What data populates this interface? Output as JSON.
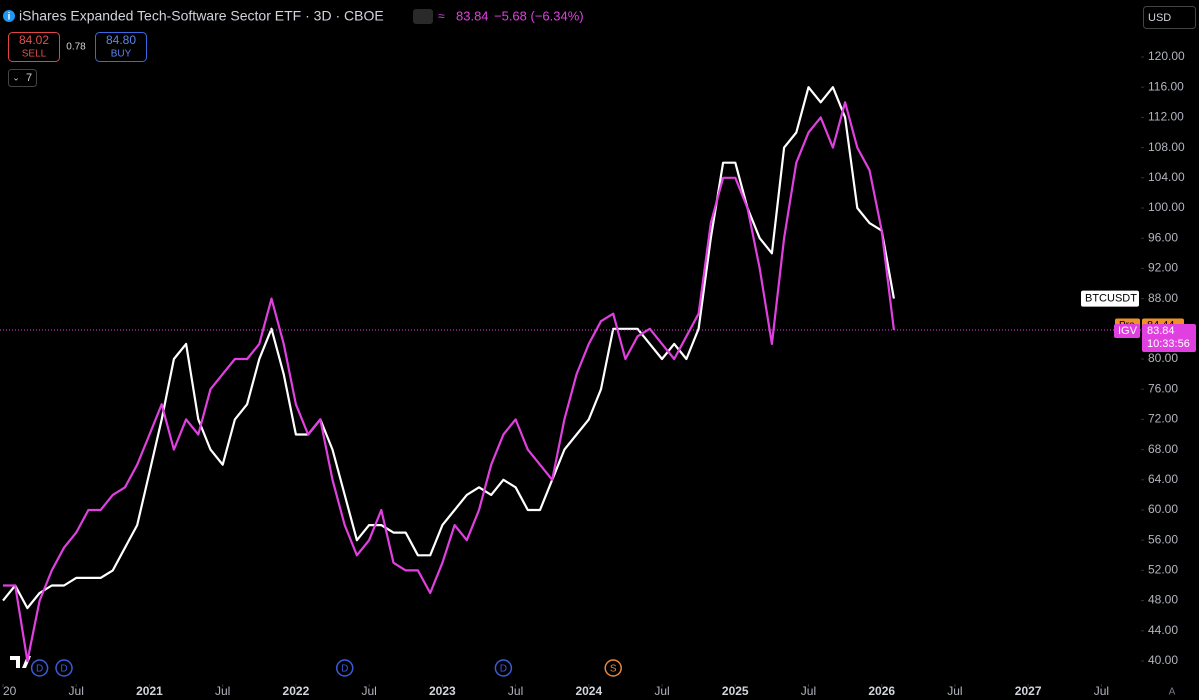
{
  "chart_data": {
    "type": "line",
    "title": "iShares Expanded Tech-Software Sector ETF · 3D · CBOE",
    "last_price": "83.84",
    "change": "−5.68 (−6.34%)",
    "sell_price": "84.02",
    "sell_label": "SELL",
    "spread": "0.78",
    "buy_price": "84.80",
    "buy_label": "BUY",
    "indicator_count": "7",
    "currency": "USD",
    "pre_label": "Pre",
    "pre_price": 84.44,
    "countdown": "10:33:56",
    "x": [
      "2020-01",
      "2020-02",
      "2020-03",
      "2020-04",
      "2020-05",
      "2020-06",
      "2020-07",
      "2020-08",
      "2020-09",
      "2020-10",
      "2020-11",
      "2020-12",
      "2021-01",
      "2021-02",
      "2021-03",
      "2021-04",
      "2021-05",
      "2021-06",
      "2021-07",
      "2021-08",
      "2021-09",
      "2021-10",
      "2021-11",
      "2021-12",
      "2022-01",
      "2022-02",
      "2022-03",
      "2022-04",
      "2022-05",
      "2022-06",
      "2022-07",
      "2022-08",
      "2022-09",
      "2022-10",
      "2022-11",
      "2022-12",
      "2023-01",
      "2023-02",
      "2023-03",
      "2023-04",
      "2023-05",
      "2023-06",
      "2023-07",
      "2023-08",
      "2023-09",
      "2023-10",
      "2023-11",
      "2023-12",
      "2024-01",
      "2024-02",
      "2024-03",
      "2024-04",
      "2024-05",
      "2024-06",
      "2024-07",
      "2024-08",
      "2024-09",
      "2024-10",
      "2024-11",
      "2024-12",
      "2025-01",
      "2025-02",
      "2025-03",
      "2025-04",
      "2025-05",
      "2025-06",
      "2025-07",
      "2025-08",
      "2025-09",
      "2025-10",
      "2025-11",
      "2025-12",
      "2026-01",
      "2026-02"
    ],
    "series": [
      {
        "name": "BTCUSDT",
        "color": "#ffffff",
        "values": [
          48,
          50,
          47,
          49,
          50,
          50,
          51,
          51,
          51,
          52,
          55,
          58,
          65,
          72,
          80,
          82,
          72,
          68,
          66,
          72,
          74,
          80,
          84,
          78,
          70,
          70,
          72,
          68,
          62,
          56,
          58,
          58,
          57,
          57,
          54,
          54,
          58,
          60,
          62,
          63,
          62,
          64,
          63,
          60,
          60,
          64,
          68,
          70,
          72,
          76,
          84,
          84,
          84,
          82,
          80,
          82,
          80,
          84,
          96,
          106,
          106,
          100,
          96,
          94,
          108,
          110,
          116,
          114,
          116,
          112,
          100,
          98,
          97,
          88
        ]
      },
      {
        "name": "IGV",
        "color": "#e040e0",
        "values": [
          50,
          50,
          40,
          48,
          52,
          55,
          57,
          60,
          60,
          62,
          63,
          66,
          70,
          74,
          68,
          72,
          70,
          76,
          78,
          80,
          80,
          82,
          88,
          82,
          74,
          70,
          72,
          64,
          58,
          54,
          56,
          60,
          53,
          52,
          52,
          49,
          53,
          58,
          56,
          60,
          66,
          70,
          72,
          68,
          66,
          64,
          72,
          78,
          82,
          85,
          86,
          80,
          83,
          84,
          82,
          80,
          83,
          86,
          98,
          104,
          104,
          100,
          92,
          82,
          96,
          106,
          110,
          112,
          108,
          114,
          108,
          105,
          97,
          83.84
        ]
      }
    ],
    "xlim": [
      "2020-01",
      "2027-10"
    ],
    "xticks": [
      {
        "value": "2020-01",
        "label": "20"
      },
      {
        "value": "2020-07",
        "label": "Jul"
      },
      {
        "value": "2021-01",
        "label": "2021"
      },
      {
        "value": "2021-07",
        "label": "Jul"
      },
      {
        "value": "2022-01",
        "label": "2022"
      },
      {
        "value": "2022-07",
        "label": "Jul"
      },
      {
        "value": "2023-01",
        "label": "2023"
      },
      {
        "value": "2023-07",
        "label": "Jul"
      },
      {
        "value": "2024-01",
        "label": "2024"
      },
      {
        "value": "2024-07",
        "label": "Jul"
      },
      {
        "value": "2025-01",
        "label": "2025"
      },
      {
        "value": "2025-07",
        "label": "Jul"
      },
      {
        "value": "2026-01",
        "label": "2026"
      },
      {
        "value": "2026-07",
        "label": "Jul"
      },
      {
        "value": "2027-01",
        "label": "2027"
      },
      {
        "value": "2027-07",
        "label": "Jul"
      }
    ],
    "ylim": [
      36.95,
      127.55
    ],
    "yticks": [
      {
        "value": 40,
        "label": "40.00"
      },
      {
        "value": 44,
        "label": "44.00"
      },
      {
        "value": 48,
        "label": "48.00"
      },
      {
        "value": 52,
        "label": "52.00"
      },
      {
        "value": 56,
        "label": "56.00"
      },
      {
        "value": 60,
        "label": "60.00"
      },
      {
        "value": 64,
        "label": "64.00"
      },
      {
        "value": 68,
        "label": "68.00"
      },
      {
        "value": 72,
        "label": "72.00"
      },
      {
        "value": 76,
        "label": "76.00"
      },
      {
        "value": 80,
        "label": "80.00"
      },
      {
        "value": 84,
        "label": "84.00"
      },
      {
        "value": 88,
        "label": "88.00"
      },
      {
        "value": 92,
        "label": "92.00"
      },
      {
        "value": 96,
        "label": "96.00"
      },
      {
        "value": 100,
        "label": "100.00"
      },
      {
        "value": 104,
        "label": "104.00"
      },
      {
        "value": 108,
        "label": "108.00"
      },
      {
        "value": 112,
        "label": "112.00"
      },
      {
        "value": 116,
        "label": "116.00"
      },
      {
        "value": 120,
        "label": "120.00"
      }
    ],
    "grid": false,
    "events": [
      {
        "label": "D",
        "x": "2020-04",
        "color": "#3b5bdb"
      },
      {
        "label": "D",
        "x": "2020-06",
        "color": "#3b5bdb"
      },
      {
        "label": "D",
        "x": "2022-05",
        "color": "#3b5bdb"
      },
      {
        "label": "D",
        "x": "2023-06",
        "color": "#3b5bdb"
      },
      {
        "label": "S",
        "x": "2024-03",
        "color": "#e8863a"
      }
    ],
    "scale_mode": "A"
  }
}
